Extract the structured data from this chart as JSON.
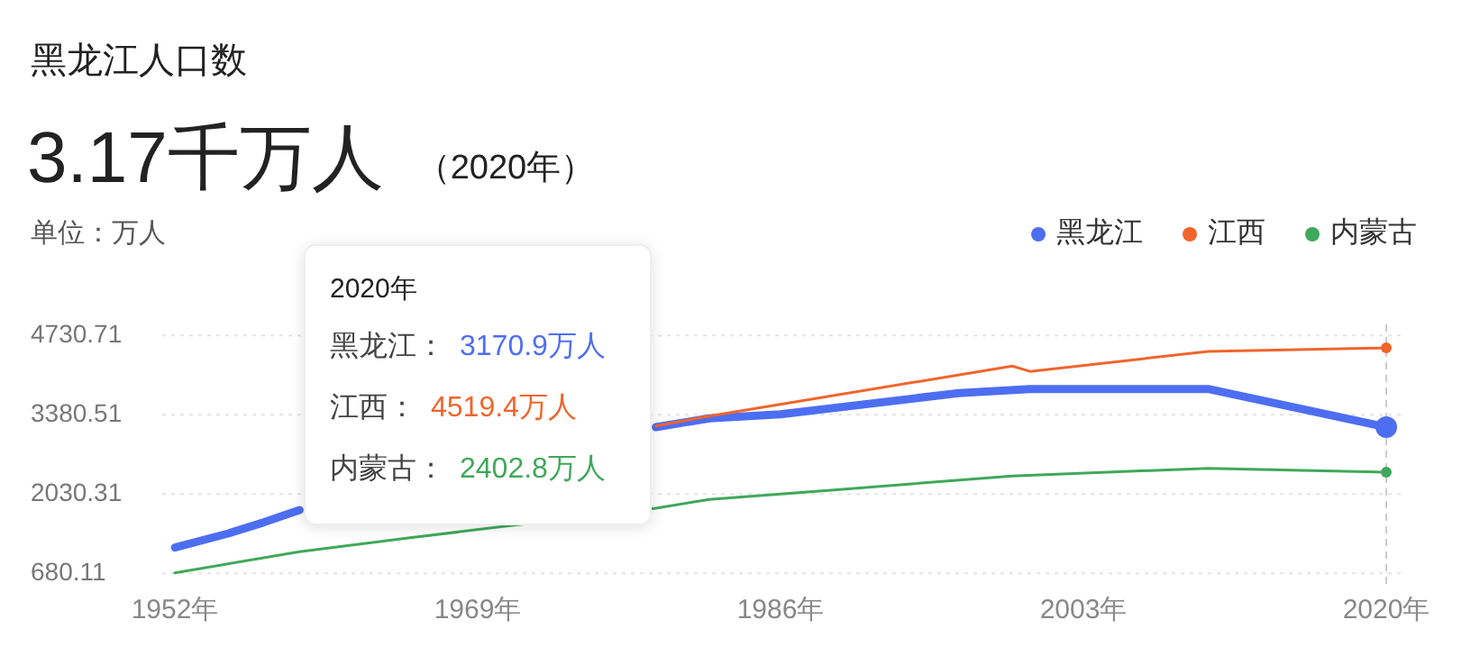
{
  "chart_data": {
    "type": "line",
    "title": "黑龙江人口数",
    "subtitle": "3.17千万人",
    "ylabel": "单位：万人",
    "annotations": [
      "（2020年）",
      "2020年",
      "黑龙江：",
      "3170.9万人",
      "江西：",
      "4519.4万人",
      "内蒙古：",
      "2402.8万人"
    ],
    "series": [
      {
        "name": "黑龙江",
        "color": "#4e6ef2",
        "x": [
          1952,
          1955,
          1957,
          1959,
          1968,
          1979,
          1982,
          1986,
          1996,
          2000,
          2010,
          2020
        ],
        "values": [
          1120,
          1360,
          1550,
          1760,
          null,
          3170,
          3320,
          3390,
          3750,
          3820,
          3820,
          3170.9
        ]
      },
      {
        "name": "江西",
        "color": "#f0652b",
        "x": [
          1979,
          1982,
          1999,
          2000,
          2010,
          2020
        ],
        "values": [
          3190,
          3360,
          4210,
          4120,
          4460,
          4519.4
        ]
      },
      {
        "name": "内蒙古",
        "color": "#3fa85a",
        "x": [
          1952,
          1959,
          1965,
          1979,
          1982,
          1989,
          1999,
          2010,
          2020
        ],
        "values": [
          690,
          1050,
          1280,
          1790,
          1940,
          2100,
          2340,
          2470,
          2402.8
        ]
      }
    ],
    "xlim": [
      1952,
      2020
    ],
    "ylim": [
      470,
      4920
    ],
    "xticks": [
      {
        "value": 1952,
        "label": "1952年"
      },
      {
        "value": 1969,
        "label": "1969年"
      },
      {
        "value": 1986,
        "label": "1986年"
      },
      {
        "value": 2003,
        "label": "2003年"
      },
      {
        "value": 2020,
        "label": "2020年"
      }
    ],
    "yticks": [
      680.11,
      2030.31,
      3380.51,
      4730.71
    ],
    "ref_lines": [
      {
        "axis": "x",
        "value": 2020,
        "color": "#cccccc",
        "line_style": "dashed"
      }
    ],
    "grid": "y",
    "legend": "top right",
    "line_style": "solid"
  }
}
